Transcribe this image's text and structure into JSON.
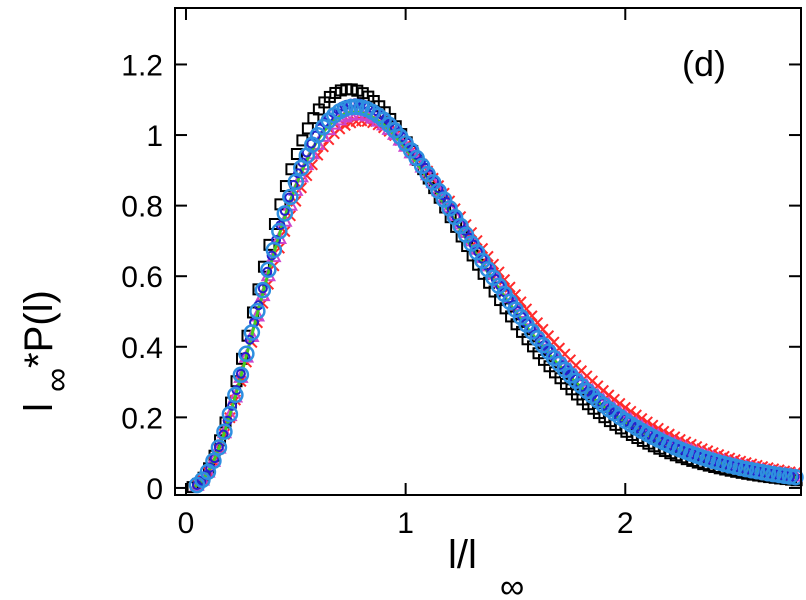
{
  "chart_data": {
    "type": "scatter",
    "panel_label": "(d)",
    "xlabel": {
      "base": "l/l",
      "sub": "∞"
    },
    "ylabel": {
      "base": "l",
      "sub": "∞",
      "rest": "*P(l)"
    },
    "xlim": [
      -0.05,
      2.8
    ],
    "ylim": [
      -0.02,
      1.36
    ],
    "x_ticks": [
      {
        "value": 0,
        "label": "0"
      },
      {
        "value": 1,
        "label": "1"
      },
      {
        "value": 2,
        "label": "2"
      }
    ],
    "y_ticks": [
      {
        "value": 0,
        "label": "0"
      },
      {
        "value": 0.2,
        "label": "0.2"
      },
      {
        "value": 0.4,
        "label": "0.4"
      },
      {
        "value": 0.6,
        "label": "0.6"
      },
      {
        "value": 0.8,
        "label": "0.8"
      },
      {
        "value": 1,
        "label": "1"
      },
      {
        "value": 1.2,
        "label": "1.2"
      }
    ],
    "grid": false,
    "series": [
      {
        "color": "#000000",
        "marker": "square",
        "peak_x": 0.74,
        "peak_y": 1.13,
        "shape": 2.75,
        "x_start": 0.03,
        "x_end": 2.78,
        "step": 0.025
      },
      {
        "color": "#ff2a2a",
        "marker": "x",
        "peak_x": 0.8,
        "peak_y": 1.04,
        "shape": 2.6,
        "x_start": 0.05,
        "x_end": 2.78,
        "step": 0.025
      },
      {
        "color": "#cc44cc",
        "marker": "triangle",
        "peak_x": 0.78,
        "peak_y": 1.06,
        "shape": 2.65,
        "x_start": 0.05,
        "x_end": 2.78,
        "step": 0.025
      },
      {
        "color": "#44cc22",
        "marker": "line",
        "peak_x": 0.77,
        "peak_y": 1.065,
        "shape": 2.7,
        "x_start": 0.04,
        "x_end": 2.78,
        "step": 0.01
      },
      {
        "color": "#2222cc",
        "marker": "circle-small",
        "peak_x": 0.77,
        "peak_y": 1.09,
        "shape": 2.7,
        "x_start": 0.05,
        "x_end": 2.78,
        "step": 0.02
      },
      {
        "color": "#2e8fe0",
        "marker": "circle",
        "peak_x": 0.77,
        "peak_y": 1.08,
        "shape": 2.7,
        "x_start": 0.05,
        "x_end": 2.78,
        "step": 0.025
      }
    ]
  }
}
